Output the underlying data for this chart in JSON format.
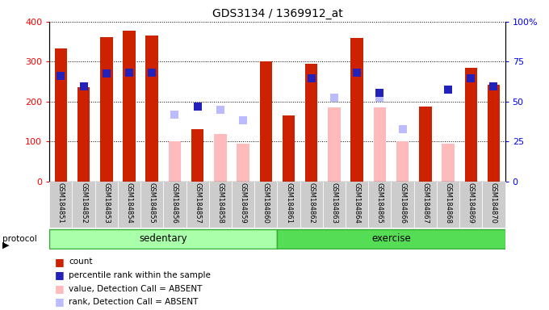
{
  "title": "GDS3134 / 1369912_at",
  "samples": [
    "GSM184851",
    "GSM184852",
    "GSM184853",
    "GSM184854",
    "GSM184855",
    "GSM184856",
    "GSM184857",
    "GSM184858",
    "GSM184859",
    "GSM184860",
    "GSM184861",
    "GSM184862",
    "GSM184863",
    "GSM184864",
    "GSM184865",
    "GSM184866",
    "GSM184867",
    "GSM184868",
    "GSM184869",
    "GSM184870"
  ],
  "count_values": [
    332,
    236,
    362,
    378,
    365,
    null,
    130,
    null,
    null,
    300,
    165,
    295,
    null,
    360,
    null,
    null,
    188,
    null,
    285,
    242
  ],
  "percentile_values": [
    265,
    238,
    270,
    272,
    272,
    null,
    188,
    null,
    null,
    null,
    null,
    258,
    null,
    272,
    222,
    null,
    null,
    230,
    258,
    238
  ],
  "absent_count_values": [
    null,
    null,
    null,
    null,
    null,
    100,
    null,
    118,
    95,
    null,
    null,
    null,
    185,
    null,
    185,
    100,
    null,
    95,
    null,
    null
  ],
  "absent_rank_values": [
    null,
    null,
    null,
    null,
    null,
    168,
    null,
    180,
    152,
    null,
    null,
    null,
    210,
    null,
    210,
    130,
    null,
    null,
    null,
    null
  ],
  "sedentary_range": [
    0,
    9
  ],
  "exercise_range": [
    10,
    19
  ],
  "ylim_left": [
    0,
    400
  ],
  "ylim_right": [
    0,
    100
  ],
  "yticks_left": [
    0,
    100,
    200,
    300,
    400
  ],
  "yticks_right": [
    0,
    25,
    50,
    75,
    100
  ],
  "bar_color_count": "#cc2200",
  "bar_color_percentile": "#2222bb",
  "bar_color_absent_count": "#ffbbbb",
  "bar_color_absent_rank": "#bbbbff",
  "legend_items": [
    {
      "label": "count",
      "color": "#cc2200"
    },
    {
      "label": "percentile rank within the sample",
      "color": "#2222bb"
    },
    {
      "label": "value, Detection Call = ABSENT",
      "color": "#ffbbbb"
    },
    {
      "label": "rank, Detection Call = ABSENT",
      "color": "#bbbbff"
    }
  ],
  "sedentary_color": "#aaffaa",
  "exercise_color": "#55dd55",
  "protocol_border_color": "#33aa33"
}
